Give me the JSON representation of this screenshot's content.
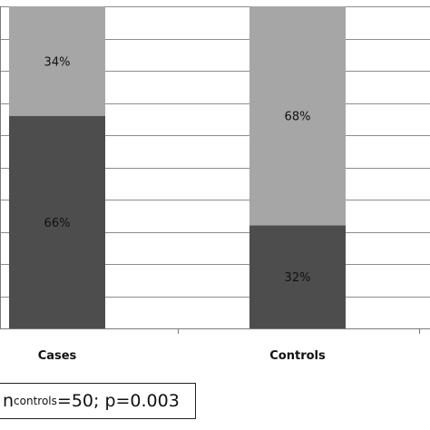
{
  "chart_data": {
    "type": "bar",
    "stacked": true,
    "percent": true,
    "categories": [
      "Cases",
      "Controls"
    ],
    "series": [
      {
        "values": [
          66,
          32
        ],
        "labels": [
          "66%",
          "32%"
        ],
        "color": "#4d4d4d"
      },
      {
        "values": [
          34,
          68
        ],
        "labels": [
          "34%",
          "68%"
        ],
        "color": "#a6a6a6"
      }
    ],
    "ylim": [
      0,
      100
    ],
    "grid": true
  },
  "note": {
    "prefix": "n",
    "sub": "controls",
    "rest": "=50; p=0.003"
  }
}
